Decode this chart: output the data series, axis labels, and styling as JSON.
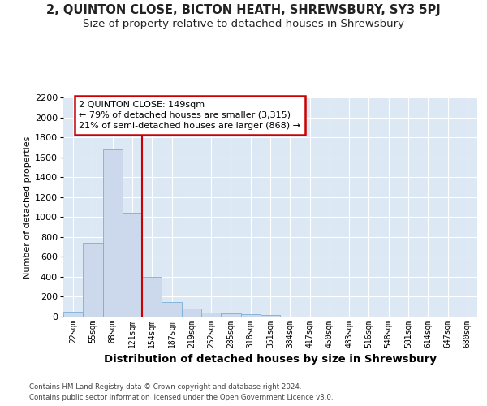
{
  "title_line1": "2, QUINTON CLOSE, BICTON HEATH, SHREWSBURY, SY3 5PJ",
  "title_line2": "Size of property relative to detached houses in Shrewsbury",
  "xlabel": "Distribution of detached houses by size in Shrewsbury",
  "ylabel": "Number of detached properties",
  "footer_line1": "Contains HM Land Registry data © Crown copyright and database right 2024.",
  "footer_line2": "Contains public sector information licensed under the Open Government Licence v3.0.",
  "bar_labels": [
    "22sqm",
    "55sqm",
    "88sqm",
    "121sqm",
    "154sqm",
    "187sqm",
    "219sqm",
    "252sqm",
    "285sqm",
    "318sqm",
    "351sqm",
    "384sqm",
    "417sqm",
    "450sqm",
    "483sqm",
    "516sqm",
    "548sqm",
    "581sqm",
    "614sqm",
    "647sqm",
    "680sqm"
  ],
  "bar_values": [
    50,
    740,
    1680,
    1040,
    400,
    150,
    80,
    40,
    35,
    25,
    20,
    0,
    0,
    0,
    0,
    0,
    0,
    0,
    0,
    0,
    0
  ],
  "bar_color": "#ccd9ed",
  "bar_edge_color": "#7aadd4",
  "vline_color": "#cc0000",
  "vline_x": 4.0,
  "annotation_text": "2 QUINTON CLOSE: 149sqm\n← 79% of detached houses are smaller (3,315)\n21% of semi-detached houses are larger (868) →",
  "annotation_box_facecolor": "#ffffff",
  "annotation_box_edgecolor": "#cc0000",
  "ylim": [
    0,
    2200
  ],
  "yticks": [
    0,
    200,
    400,
    600,
    800,
    1000,
    1200,
    1400,
    1600,
    1800,
    2000,
    2200
  ],
  "fig_facecolor": "#ffffff",
  "plot_facecolor": "#dde8f5",
  "grid_color": "#ffffff",
  "title_fontsize": 10.5,
  "subtitle_fontsize": 9.5,
  "ylabel_fontsize": 8,
  "xlabel_fontsize": 9.5
}
